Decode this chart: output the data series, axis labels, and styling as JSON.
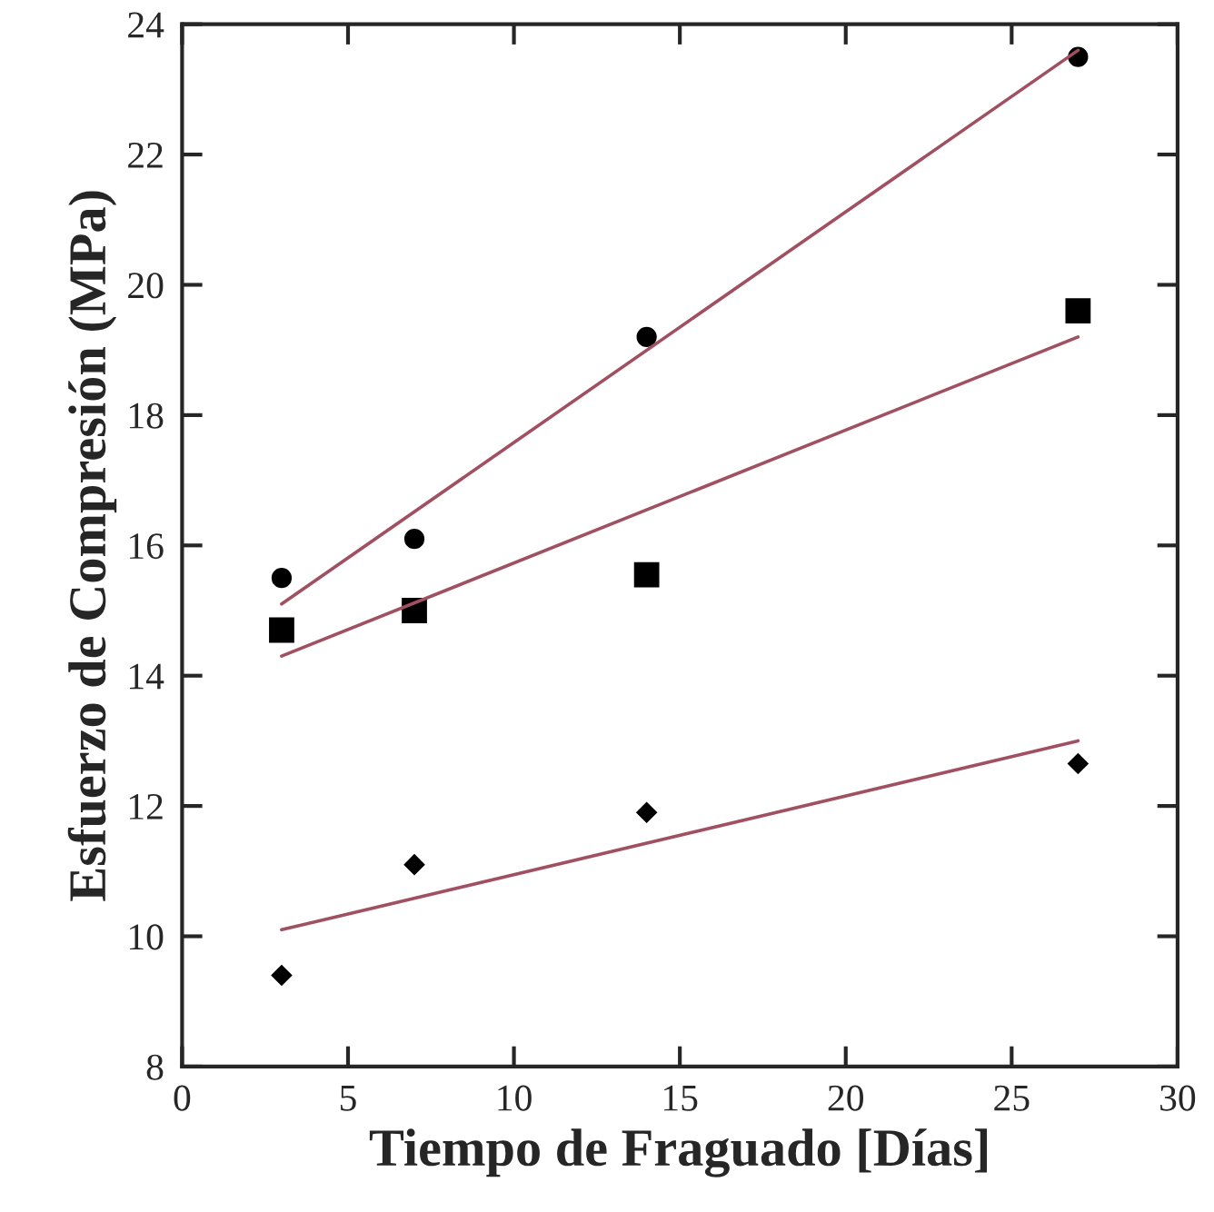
{
  "chart_data": {
    "type": "scatter",
    "xlabel": "Tiempo de Fraguado [Días]",
    "ylabel": "Esfuerzo de Compresión (MPa)",
    "xlim": [
      0,
      30
    ],
    "xticks": [
      0,
      5,
      10,
      15,
      20,
      25,
      30
    ],
    "ylim": [
      8,
      24
    ],
    "yticks": [
      8,
      10,
      12,
      14,
      16,
      18,
      20,
      22,
      24
    ],
    "grid": false,
    "legend": false,
    "series": [
      {
        "marker": "circle",
        "color": "#000000",
        "x": [
          3,
          7,
          14,
          27
        ],
        "values": [
          15.5,
          16.1,
          19.2,
          23.5
        ]
      },
      {
        "marker": "square",
        "color": "#000000",
        "x": [
          3,
          7,
          14,
          27
        ],
        "values": [
          14.7,
          15.0,
          15.55,
          19.6
        ]
      },
      {
        "marker": "diamond",
        "color": "#000000",
        "x": [
          3,
          7,
          14,
          27
        ],
        "values": [
          9.4,
          11.1,
          11.9,
          12.65
        ]
      },
      {
        "type": "line",
        "marker": "none",
        "line_style": "solid",
        "color": "#a05060",
        "x": [
          3,
          27
        ],
        "values": [
          15.1,
          23.6
        ]
      },
      {
        "type": "line",
        "marker": "none",
        "line_style": "solid",
        "color": "#a05060",
        "x": [
          3,
          27
        ],
        "values": [
          14.3,
          19.2
        ]
      },
      {
        "type": "line",
        "marker": "none",
        "line_style": "solid",
        "color": "#a05060",
        "x": [
          3,
          27
        ],
        "values": [
          10.1,
          13.0
        ]
      }
    ]
  }
}
